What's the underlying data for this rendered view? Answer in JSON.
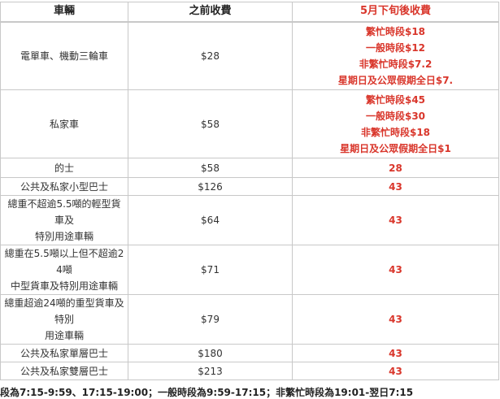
{
  "table": {
    "headers": [
      "車輛",
      "之前收費",
      "5月下旬後收費"
    ],
    "rows": [
      {
        "vehicle": [
          "電單車、機動三輪車"
        ],
        "before": "$28",
        "after": [
          "繁忙時段$18",
          "一般時段$12",
          "非繁忙時段$7.2",
          "星期日及公眾假期全日$7."
        ]
      },
      {
        "vehicle": [
          "私家車"
        ],
        "before": "$58",
        "after": [
          "繁忙時段$45",
          "一般時段$30",
          "非繁忙時段$18",
          "星期日及公眾假期全日$1"
        ]
      },
      {
        "vehicle": [
          "的士"
        ],
        "before": "$58",
        "after": [
          "28"
        ]
      },
      {
        "vehicle": [
          "公共及私家小型巴士"
        ],
        "before": "$126",
        "after": [
          "43"
        ]
      },
      {
        "vehicle": [
          "總重不超逾5.5噸的輕型貨車及",
          "特別用途車輛"
        ],
        "before": "$64",
        "after": [
          "43"
        ]
      },
      {
        "vehicle": [
          "總重在5.5噸以上但不超逾24噸",
          "中型貨車及特別用途車輛"
        ],
        "before": "$71",
        "after": [
          "43"
        ]
      },
      {
        "vehicle": [
          "總重超逾24噸的重型貨車及特別",
          "用途車輛"
        ],
        "before": "$79",
        "after": [
          "43"
        ]
      },
      {
        "vehicle": [
          "公共及私家單層巴士"
        ],
        "before": "$180",
        "after": [
          "43"
        ]
      },
      {
        "vehicle": [
          "公共及私家雙層巴士"
        ],
        "before": "$213",
        "after": [
          "43"
        ]
      }
    ]
  },
  "note": "段為7:15-9:59、17:15-19:00；一般時段為9:59-17:15；非繁忙時段為19:01-翌日7:15",
  "colors": {
    "accent": "#d9362b"
  }
}
